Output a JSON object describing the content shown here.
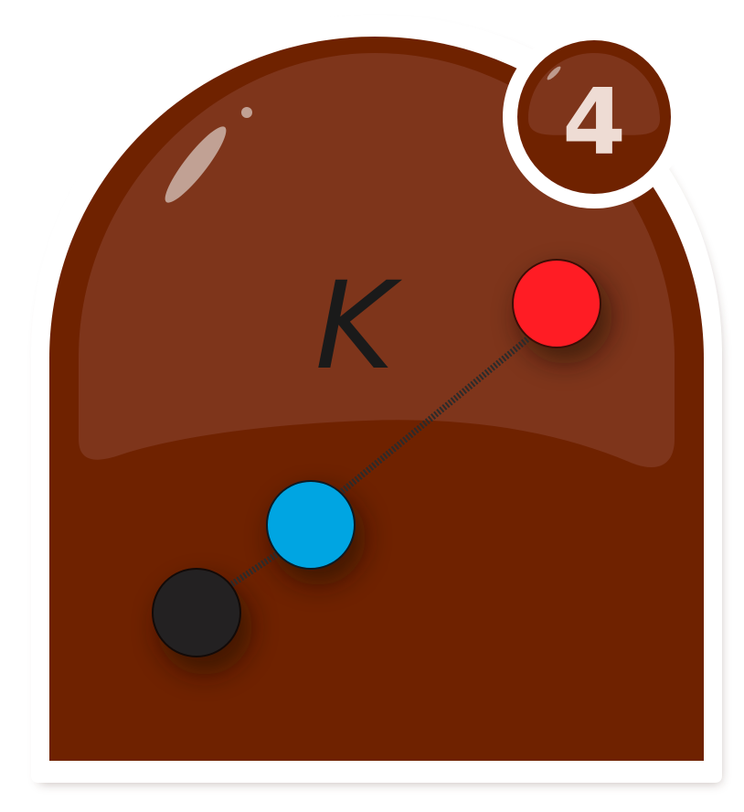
{
  "tile": {
    "symbol": "K",
    "badge_number": "4"
  },
  "colors": {
    "tile_body": "#6f2200",
    "tile_gloss": "#7e351b",
    "tile_border": "#ffffff",
    "symbol": "#1a1a1a",
    "badge_text": "#eedcd4",
    "dot_red": "#ff1c24",
    "dot_blue": "#00a5e2",
    "dot_black": "#232122",
    "connector": "#2b2b2b"
  },
  "nodes": [
    {
      "name": "red-node",
      "color": "red"
    },
    {
      "name": "blue-node",
      "color": "blue"
    },
    {
      "name": "black-node",
      "color": "black"
    }
  ]
}
